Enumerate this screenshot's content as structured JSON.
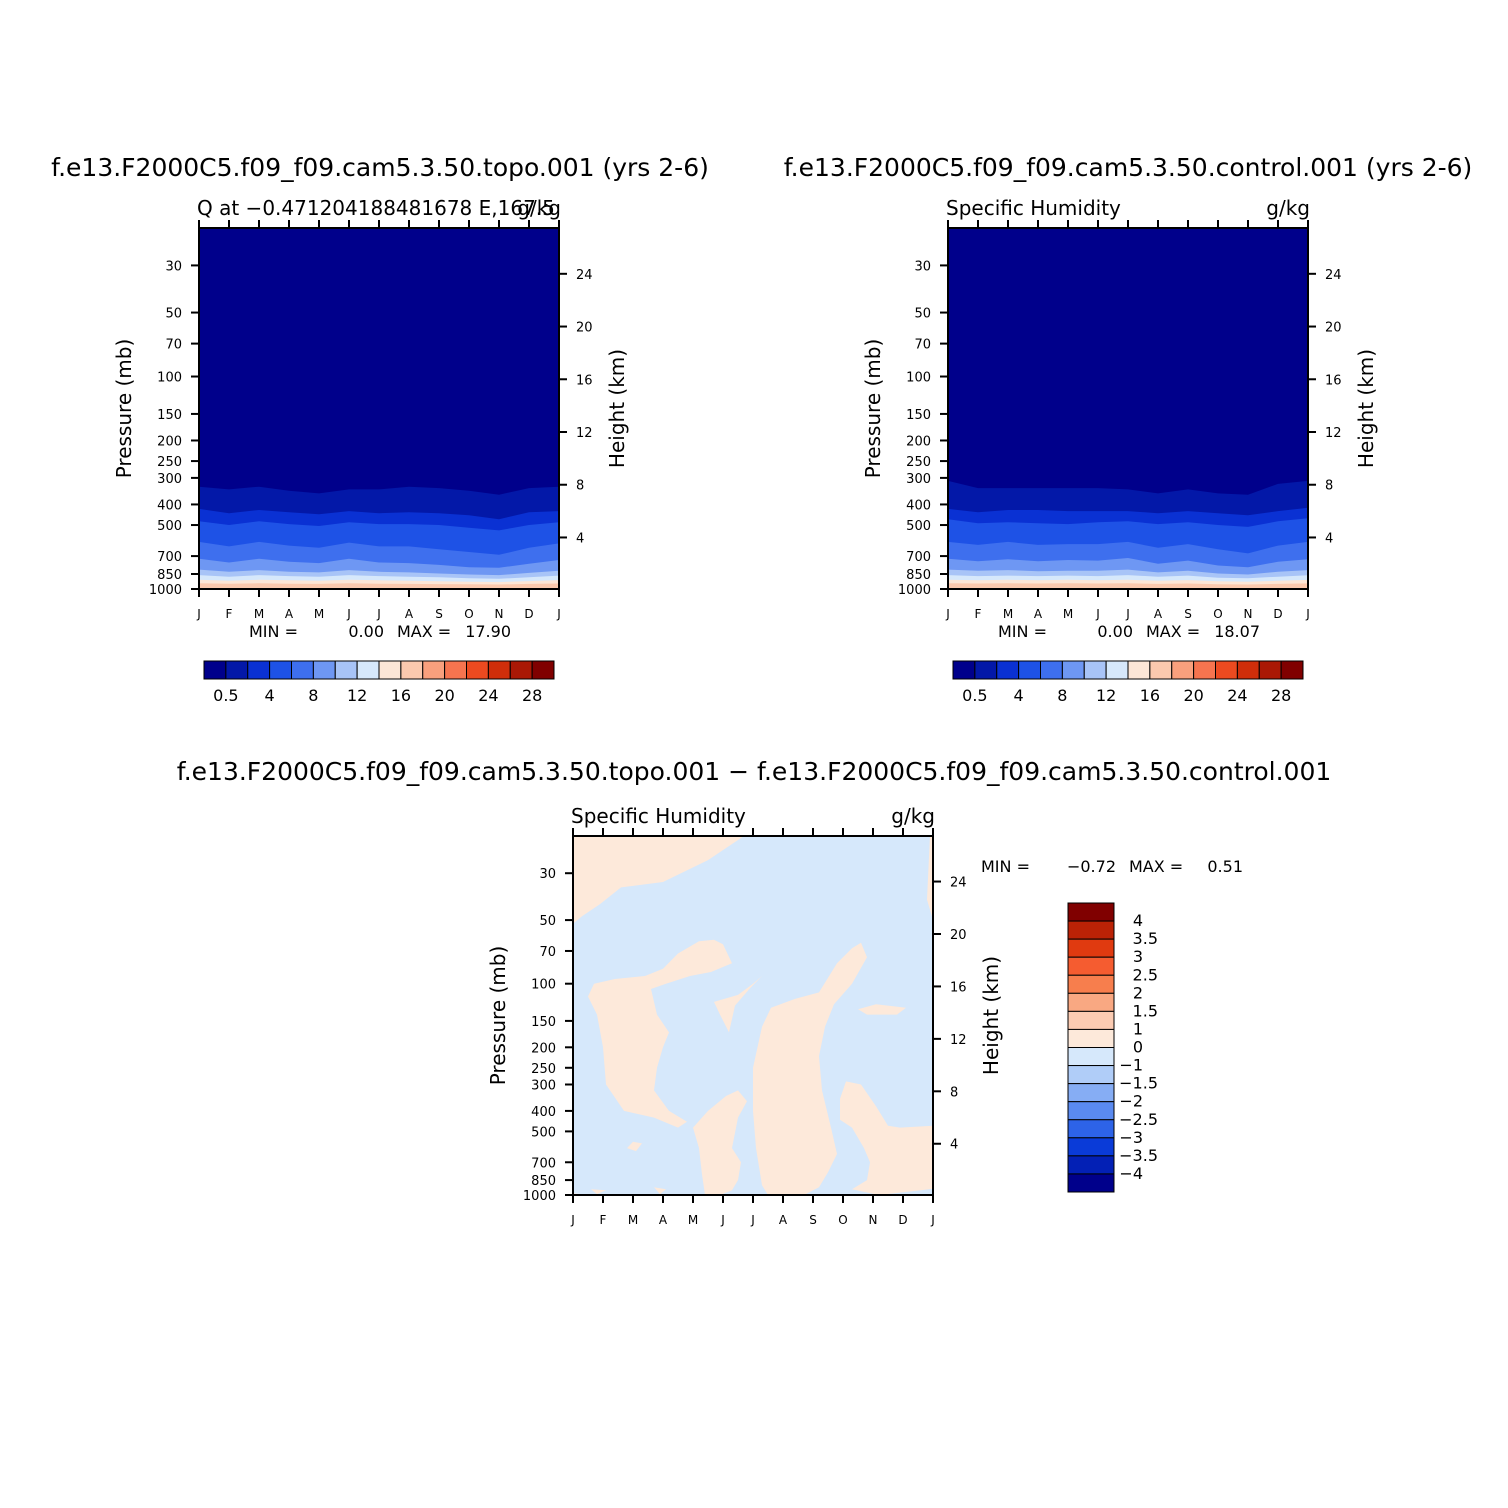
{
  "chart_data": [
    {
      "type": "heatmap",
      "title": "f.e13.F2000C5.f09_f09.cam5.3.50.topo.001 (yrs 2-6)",
      "left_subtitle": "Q at −0.471204188481678 E,167.5",
      "right_subtitle": "g/kg",
      "xlabel": "",
      "ylabel": "Pressure (mb)",
      "y2label": "Height (km)",
      "x_ticks": [
        "J",
        "F",
        "M",
        "A",
        "M",
        "J",
        "J",
        "A",
        "S",
        "O",
        "N",
        "D",
        "J"
      ],
      "y_ticks": [
        30,
        50,
        70,
        100,
        150,
        200,
        250,
        300,
        400,
        500,
        700,
        850,
        1000
      ],
      "y2_ticks": [
        24,
        20,
        16,
        12,
        8,
        4
      ],
      "ylim": [
        1000,
        20
      ],
      "y_scale": "log",
      "min_label": "MIN =",
      "min_value": "0.00",
      "max_label": "MAX =",
      "max_value": "17.90",
      "colorbar_levels": [
        "0.5",
        "4",
        "8",
        "12",
        "16",
        "20",
        "24",
        "28"
      ],
      "colors": [
        "#00008B",
        "#0318A8",
        "#0A31D3",
        "#1E52E6",
        "#3E6FEE",
        "#6E97F3",
        "#A8C4F7",
        "#D6E8FB",
        "#FCE6D6",
        "#FBC9AE",
        "#F9A07D",
        "#F6744F",
        "#EC4A20",
        "#D02E0A",
        "#AA1805",
        "#800000"
      ],
      "band_boundaries": [
        {
          "level": 0.5,
          "pressure": [
            330,
            340,
            330,
            345,
            355,
            340,
            340,
            330,
            335,
            345,
            360,
            335,
            330
          ]
        },
        {
          "level": 1,
          "pressure": [
            420,
            440,
            425,
            435,
            445,
            430,
            440,
            435,
            440,
            450,
            470,
            435,
            430
          ]
        },
        {
          "level": 2,
          "pressure": [
            480,
            500,
            480,
            495,
            505,
            485,
            495,
            495,
            500,
            515,
            530,
            500,
            485
          ]
        },
        {
          "level": 4,
          "pressure": [
            600,
            630,
            600,
            625,
            640,
            605,
            630,
            630,
            650,
            670,
            690,
            640,
            610
          ]
        },
        {
          "level": 6,
          "pressure": [
            720,
            750,
            720,
            745,
            755,
            720,
            750,
            755,
            770,
            790,
            795,
            760,
            730
          ]
        },
        {
          "level": 8,
          "pressure": [
            810,
            830,
            815,
            830,
            835,
            815,
            830,
            835,
            845,
            855,
            860,
            840,
            820
          ]
        },
        {
          "level": 10,
          "pressure": [
            860,
            875,
            860,
            870,
            875,
            860,
            870,
            875,
            880,
            890,
            895,
            880,
            865
          ]
        },
        {
          "level": 12,
          "pressure": [
            905,
            915,
            905,
            910,
            915,
            905,
            910,
            915,
            920,
            925,
            928,
            918,
            908
          ]
        },
        {
          "level": 14,
          "pressure": [
            940,
            945,
            940,
            944,
            946,
            940,
            944,
            946,
            948,
            950,
            952,
            946,
            942
          ]
        }
      ]
    },
    {
      "type": "heatmap",
      "title": "f.e13.F2000C5.f09_f09.cam5.3.50.control.001 (yrs 2-6)",
      "left_subtitle": "Specific Humidity",
      "right_subtitle": "g/kg",
      "xlabel": "",
      "ylabel": "Pressure (mb)",
      "y2label": "Height (km)",
      "x_ticks": [
        "J",
        "F",
        "M",
        "A",
        "M",
        "J",
        "J",
        "A",
        "S",
        "O",
        "N",
        "D",
        "J"
      ],
      "y_ticks": [
        30,
        50,
        70,
        100,
        150,
        200,
        250,
        300,
        400,
        500,
        700,
        850,
        1000
      ],
      "y2_ticks": [
        24,
        20,
        16,
        12,
        8,
        4
      ],
      "ylim": [
        1000,
        20
      ],
      "y_scale": "log",
      "min_label": "MIN =",
      "min_value": "0.00",
      "max_label": "MAX =",
      "max_value": "18.07",
      "colorbar_levels": [
        "0.5",
        "4",
        "8",
        "12",
        "16",
        "20",
        "24",
        "28"
      ],
      "colors": [
        "#00008B",
        "#0318A8",
        "#0A31D3",
        "#1E52E6",
        "#3E6FEE",
        "#6E97F3",
        "#A8C4F7",
        "#D6E8FB",
        "#FCE6D6",
        "#FBC9AE",
        "#F9A07D",
        "#F6744F",
        "#EC4A20",
        "#D02E0A",
        "#AA1805",
        "#800000"
      ],
      "band_boundaries": [
        {
          "level": 0.5,
          "pressure": [
            310,
            335,
            335,
            335,
            335,
            335,
            340,
            355,
            340,
            355,
            360,
            320,
            310
          ]
        },
        {
          "level": 1,
          "pressure": [
            420,
            435,
            425,
            425,
            430,
            430,
            430,
            440,
            430,
            440,
            450,
            430,
            415
          ]
        },
        {
          "level": 2,
          "pressure": [
            470,
            490,
            485,
            490,
            495,
            485,
            480,
            495,
            485,
            500,
            510,
            480,
            465
          ]
        },
        {
          "level": 4,
          "pressure": [
            600,
            620,
            600,
            620,
            615,
            615,
            600,
            640,
            615,
            650,
            680,
            625,
            600
          ]
        },
        {
          "level": 6,
          "pressure": [
            720,
            740,
            725,
            740,
            730,
            735,
            715,
            760,
            735,
            775,
            790,
            745,
            725
          ]
        },
        {
          "level": 8,
          "pressure": [
            810,
            820,
            815,
            825,
            820,
            820,
            810,
            835,
            820,
            845,
            855,
            830,
            815
          ]
        },
        {
          "level": 10,
          "pressure": [
            860,
            870,
            865,
            870,
            865,
            870,
            860,
            875,
            865,
            885,
            890,
            875,
            862
          ]
        },
        {
          "level": 12,
          "pressure": [
            905,
            910,
            905,
            910,
            905,
            910,
            905,
            915,
            908,
            920,
            925,
            915,
            906
          ]
        },
        {
          "level": 14,
          "pressure": [
            940,
            942,
            940,
            942,
            940,
            942,
            940,
            946,
            942,
            950,
            952,
            946,
            941
          ]
        }
      ]
    },
    {
      "type": "heatmap",
      "title": "f.e13.F2000C5.f09_f09.cam5.3.50.topo.001 − f.e13.F2000C5.f09_f09.cam5.3.50.control.001",
      "left_subtitle": "Specific Humidity",
      "right_subtitle": "g/kg",
      "xlabel": "",
      "ylabel": "Pressure (mb)",
      "y2label": "Height (km)",
      "x_ticks": [
        "J",
        "F",
        "M",
        "A",
        "M",
        "J",
        "J",
        "A",
        "S",
        "O",
        "N",
        "D",
        "J"
      ],
      "y_ticks": [
        30,
        50,
        70,
        100,
        150,
        200,
        250,
        300,
        400,
        500,
        700,
        850,
        1000
      ],
      "y2_ticks": [
        24,
        20,
        16,
        12,
        8,
        4
      ],
      "ylim": [
        1000,
        20
      ],
      "y_scale": "log",
      "min_label": "MIN =",
      "min_value": "−0.72",
      "max_label": "MAX =",
      "max_value": "0.51",
      "colorbar_levels": [
        "4",
        "3.5",
        "3",
        "2.5",
        "2",
        "1.5",
        "1",
        "0",
        "−1",
        "−1.5",
        "−2",
        "−2.5",
        "−3",
        "−3.5",
        "−4"
      ],
      "colors": [
        "#800000",
        "#BB2206",
        "#E03A10",
        "#F55C30",
        "#F77E4D",
        "#F9A882",
        "#FBCBB2",
        "#FDE9DA",
        "#D6E8FB",
        "#B0CDF8",
        "#86ADF4",
        "#5A8AF0",
        "#2D63E8",
        "#0A3BD8",
        "#0320B5",
        "#00008B"
      ],
      "field_color": "#D6E8FB",
      "positive_color": "#FDE9DA",
      "positive_regions": [
        [
          [
            0,
            20
          ],
          [
            5.7,
            20
          ],
          [
            4.5,
            26
          ],
          [
            3.0,
            33
          ],
          [
            1.6,
            35
          ],
          [
            0.9,
            42
          ],
          [
            0.3,
            48
          ],
          [
            0,
            52
          ]
        ],
        [
          [
            12,
            20
          ],
          [
            11.9,
            20
          ],
          [
            11.8,
            40
          ],
          [
            12,
            50
          ]
        ],
        [
          [
            3.0,
            85
          ],
          [
            3.5,
            72
          ],
          [
            4.2,
            63
          ],
          [
            4.7,
            62
          ],
          [
            5.0,
            65
          ],
          [
            5.3,
            80
          ],
          [
            4.6,
            88
          ],
          [
            3.9,
            92
          ],
          [
            3.1,
            100
          ],
          [
            2.6,
            106
          ],
          [
            2.8,
            140
          ],
          [
            3.2,
            170
          ],
          [
            3.0,
            200
          ],
          [
            2.8,
            250
          ],
          [
            2.7,
            320
          ],
          [
            3.2,
            400
          ],
          [
            3.8,
            450
          ],
          [
            3.5,
            480
          ],
          [
            2.7,
            430
          ],
          [
            1.7,
            400
          ],
          [
            1.1,
            300
          ],
          [
            1.0,
            200
          ],
          [
            0.8,
            140
          ],
          [
            0.5,
            115
          ],
          [
            0.7,
            100
          ],
          [
            1.4,
            95
          ],
          [
            2.4,
            92
          ]
        ],
        [
          [
            5.5,
            113
          ],
          [
            6.0,
            100
          ],
          [
            6.3,
            92
          ],
          [
            5.9,
            105
          ],
          [
            5.4,
            127
          ],
          [
            5.2,
            170
          ],
          [
            4.9,
            140
          ],
          [
            4.7,
            122
          ]
        ],
        [
          [
            6.3,
            160
          ],
          [
            6.6,
            130
          ],
          [
            7.4,
            118
          ],
          [
            8.2,
            110
          ],
          [
            8.8,
            80
          ],
          [
            9.3,
            68
          ],
          [
            9.6,
            64
          ],
          [
            9.8,
            75
          ],
          [
            9.3,
            100
          ],
          [
            8.7,
            125
          ],
          [
            8.4,
            160
          ],
          [
            8.2,
            220
          ],
          [
            8.3,
            320
          ],
          [
            8.6,
            480
          ],
          [
            8.8,
            640
          ],
          [
            8.5,
            780
          ],
          [
            8.2,
            920
          ],
          [
            7.7,
            1000
          ],
          [
            6.5,
            1000
          ],
          [
            6.3,
            900
          ],
          [
            6.1,
            600
          ],
          [
            6.0,
            400
          ],
          [
            6.0,
            250
          ]
        ],
        [
          [
            4.5,
            400
          ],
          [
            5.1,
            340
          ],
          [
            5.5,
            320
          ],
          [
            5.8,
            360
          ],
          [
            5.5,
            430
          ],
          [
            5.3,
            600
          ],
          [
            5.6,
            700
          ],
          [
            5.5,
            850
          ],
          [
            5.3,
            950
          ],
          [
            4.9,
            1000
          ],
          [
            4.4,
            1000
          ],
          [
            4.3,
            800
          ],
          [
            4.2,
            600
          ],
          [
            4.0,
            480
          ]
        ],
        [
          [
            8.9,
            350
          ],
          [
            9.1,
            290
          ],
          [
            9.6,
            300
          ],
          [
            10.1,
            380
          ],
          [
            10.5,
            470
          ],
          [
            10.9,
            480
          ],
          [
            12,
            470
          ],
          [
            12,
            935
          ],
          [
            11.6,
            950
          ],
          [
            11.0,
            970
          ],
          [
            10.2,
            1000
          ],
          [
            9.3,
            940
          ],
          [
            9.8,
            850
          ],
          [
            9.9,
            700
          ],
          [
            9.7,
            600
          ],
          [
            9.3,
            480
          ],
          [
            8.9,
            440
          ]
        ],
        [
          [
            9.5,
            132
          ],
          [
            10.1,
            125
          ],
          [
            11.1,
            130
          ],
          [
            10.8,
            140
          ],
          [
            9.8,
            140
          ]
        ],
        [
          [
            2.0,
            560
          ],
          [
            2.3,
            570
          ],
          [
            2.1,
            620
          ],
          [
            1.8,
            600
          ]
        ],
        [
          [
            0.6,
            940
          ],
          [
            1.1,
            950
          ],
          [
            0.8,
            990
          ]
        ],
        [
          [
            2.7,
            920
          ],
          [
            3.1,
            940
          ],
          [
            2.9,
            990
          ]
        ],
        [
          [
            0,
            980
          ],
          [
            0.3,
            995
          ],
          [
            0,
            1000
          ]
        ]
      ]
    }
  ]
}
